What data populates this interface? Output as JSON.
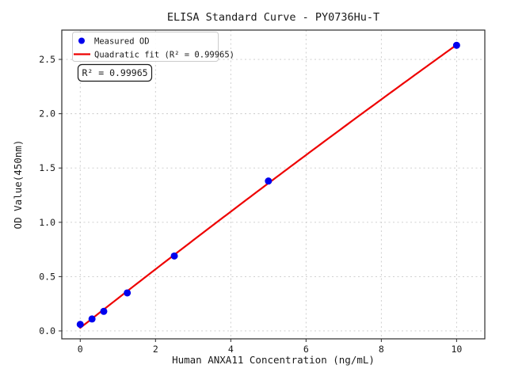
{
  "chart_data": {
    "type": "scatter",
    "title": "ELISA Standard Curve - PY0736Hu-T",
    "xlabel": "Human ANXA11 Concentration (ng/mL)",
    "ylabel": "OD Value(450nm)",
    "xlim": [
      -0.49,
      10.75
    ],
    "ylim": [
      -0.073,
      2.77
    ],
    "xticks": {
      "values": [
        0,
        2,
        4,
        6,
        8,
        10
      ],
      "labels": [
        "0",
        "2",
        "4",
        "6",
        "8",
        "10"
      ]
    },
    "yticks": {
      "values": [
        0,
        0.5,
        1,
        1.5,
        2,
        2.5
      ],
      "labels": [
        "0.0",
        "0.5",
        "1.0",
        "1.5",
        "2.0",
        "2.5"
      ]
    },
    "grid": true,
    "grid_style": "dashed",
    "legend": {
      "position": "upper-left"
    },
    "annotation": {
      "text": "R² = 0.99965"
    },
    "series": [
      {
        "name": "Measured OD",
        "type": "scatter",
        "marker": "circle",
        "color": "#0000ee",
        "x": [
          0,
          0.313,
          0.625,
          1.25,
          2.5,
          5,
          10
        ],
        "y": [
          0.06,
          0.11,
          0.18,
          0.35,
          0.69,
          1.38,
          2.63
        ]
      },
      {
        "name": "Quadratic fit (R² = 0.99965)",
        "type": "quadratic-fit",
        "color": "#ee0000",
        "r_squared": 0.99965,
        "x_range": [
          0,
          10
        ]
      }
    ],
    "colors": {
      "grid": "#c9c9c9",
      "spine": "#2b2b2b",
      "background": "#ffffff",
      "legend_border": "#cccccc",
      "annotation_border": "#1a1a1a"
    }
  }
}
